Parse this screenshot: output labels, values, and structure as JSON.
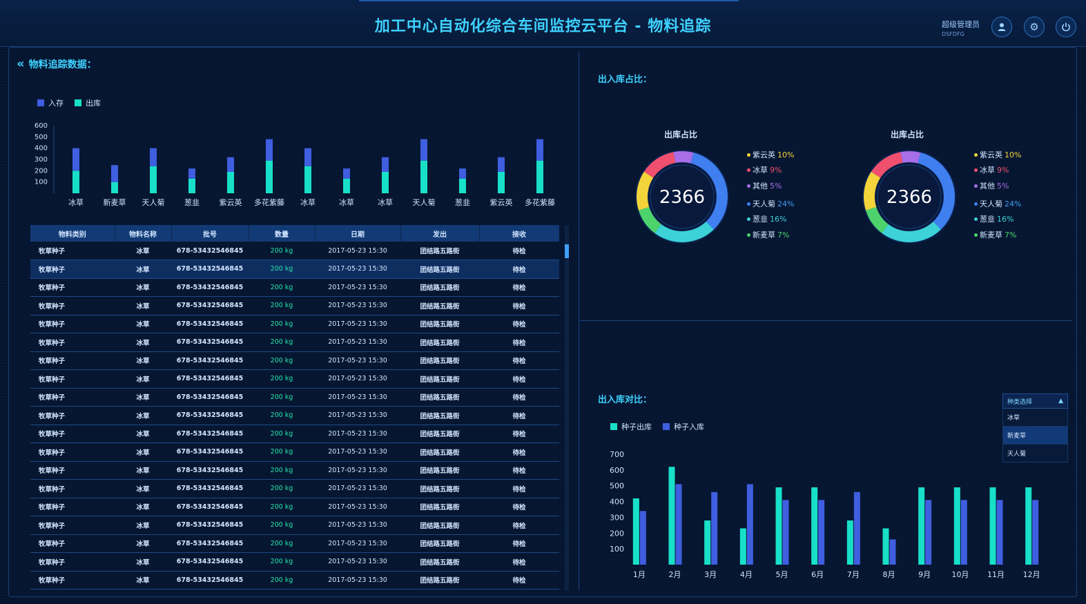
{
  "header": {
    "title": "加工中心自动化综合车间监控云平台 - 物料追踪",
    "user_name": "超级管理员",
    "user_code": "DSFDFG"
  },
  "left": {
    "section_title": "物料追踪数据："
  },
  "colors": {
    "in": "#3f5ee0",
    "out": "#18e0c8",
    "accent": "#3fd2ff"
  },
  "chart_data": [
    {
      "type": "bar",
      "stacked": true,
      "categories": [
        "冰草",
        "新麦草",
        "天人菊",
        "葱韭",
        "紫云英",
        "多花紫藤",
        "冰草",
        "冰草",
        "冰草",
        "天人菊",
        "葱韭",
        "紫云英",
        "多花紫藤"
      ],
      "series": [
        {
          "name": "入存",
          "values": [
            200,
            150,
            160,
            90,
            130,
            190,
            160,
            90,
            130,
            190,
            90,
            130,
            190
          ]
        },
        {
          "name": "出库",
          "values": [
            200,
            100,
            240,
            130,
            190,
            290,
            240,
            130,
            190,
            290,
            130,
            190,
            290
          ]
        }
      ],
      "ylim": [
        0,
        600
      ],
      "yticks": [
        100,
        200,
        300,
        400,
        500,
        600
      ]
    },
    {
      "type": "pie",
      "title": "出库占比",
      "center_value": "2366",
      "labels": [
        "紫云英",
        "冰草",
        "其他",
        "天人菊",
        "葱韭",
        "新麦草"
      ],
      "values": [
        10,
        9,
        5,
        24,
        16,
        7
      ],
      "display": [
        "10%",
        "9%",
        "5%",
        "24%",
        "16%",
        "7%"
      ]
    },
    {
      "type": "pie",
      "title": "出库占比",
      "center_value": "2366",
      "labels": [
        "紫云英",
        "冰草",
        "其他",
        "天人菊",
        "葱韭",
        "新麦草"
      ],
      "values": [
        10,
        9,
        5,
        24,
        16,
        7
      ],
      "display": [
        "10%",
        "9%",
        "5%",
        "24%",
        "16%",
        "7%"
      ]
    },
    {
      "type": "bar",
      "categories": [
        "1月",
        "2月",
        "3月",
        "4月",
        "5月",
        "6月",
        "7月",
        "8月",
        "9月",
        "10月",
        "11月",
        "12月"
      ],
      "series": [
        {
          "name": "种子出库",
          "values": [
            420,
            620,
            280,
            230,
            490,
            490,
            280,
            230,
            490,
            490,
            490,
            490
          ]
        },
        {
          "name": "种子入库",
          "values": [
            340,
            510,
            460,
            510,
            410,
            410,
            460,
            160,
            410,
            410,
            410,
            410
          ]
        }
      ],
      "ylim": [
        0,
        700
      ],
      "yticks": [
        100,
        200,
        300,
        400,
        500,
        600,
        700
      ]
    }
  ],
  "table": {
    "headers": [
      "物料类别",
      "物料名称",
      "批号",
      "数量",
      "日期",
      "发出",
      "接收"
    ],
    "rows": [
      [
        "牧草种子",
        "冰草",
        "678-53432546845",
        "200 kg",
        "2017-05-23  15:30",
        "团结路五路街",
        "待检"
      ],
      [
        "牧草种子",
        "冰草",
        "678-53432546845",
        "200 kg",
        "2017-05-23  15:30",
        "团结路五路街",
        "待检"
      ],
      [
        "牧草种子",
        "冰草",
        "678-53432546845",
        "200 kg",
        "2017-05-23  15:30",
        "团结路五路街",
        "待检"
      ],
      [
        "牧草种子",
        "冰草",
        "678-53432546845",
        "200 kg",
        "2017-05-23  15:30",
        "团结路五路街",
        "待检"
      ],
      [
        "牧草种子",
        "冰草",
        "678-53432546845",
        "200 kg",
        "2017-05-23  15:30",
        "团结路五路街",
        "待检"
      ],
      [
        "牧草种子",
        "冰草",
        "678-53432546845",
        "200 kg",
        "2017-05-23  15:30",
        "团结路五路街",
        "待检"
      ],
      [
        "牧草种子",
        "冰草",
        "678-53432546845",
        "200 kg",
        "2017-05-23  15:30",
        "团结路五路街",
        "待检"
      ],
      [
        "牧草种子",
        "冰草",
        "678-53432546845",
        "200 kg",
        "2017-05-23  15:30",
        "团结路五路街",
        "待检"
      ],
      [
        "牧草种子",
        "冰草",
        "678-53432546845",
        "200 kg",
        "2017-05-23  15:30",
        "团结路五路街",
        "待检"
      ],
      [
        "牧草种子",
        "冰草",
        "678-53432546845",
        "200 kg",
        "2017-05-23  15:30",
        "团结路五路街",
        "待检"
      ],
      [
        "牧草种子",
        "冰草",
        "678-53432546845",
        "200 kg",
        "2017-05-23  15:30",
        "团结路五路街",
        "待检"
      ],
      [
        "牧草种子",
        "冰草",
        "678-53432546845",
        "200 kg",
        "2017-05-23  15:30",
        "团结路五路街",
        "待检"
      ],
      [
        "牧草种子",
        "冰草",
        "678-53432546845",
        "200 kg",
        "2017-05-23  15:30",
        "团结路五路街",
        "待检"
      ],
      [
        "牧草种子",
        "冰草",
        "678-53432546845",
        "200 kg",
        "2017-05-23  15:30",
        "团结路五路街",
        "待检"
      ],
      [
        "牧草种子",
        "冰草",
        "678-53432546845",
        "200 kg",
        "2017-05-23  15:30",
        "团结路五路街",
        "待检"
      ],
      [
        "牧草种子",
        "冰草",
        "678-53432546845",
        "200 kg",
        "2017-05-23  15:30",
        "团结路五路街",
        "待检"
      ],
      [
        "牧草种子",
        "冰草",
        "678-53432546845",
        "200 kg",
        "2017-05-23  15:30",
        "团结路五路街",
        "待检"
      ],
      [
        "牧草种子",
        "冰草",
        "678-53432546845",
        "200 kg",
        "2017-05-23  15:30",
        "团结路五路街",
        "待检"
      ],
      [
        "牧草种子",
        "冰草",
        "678-53432546845",
        "200 kg",
        "2017-05-23  15:30",
        "团结路五路街",
        "待检"
      ]
    ]
  },
  "right_top": {
    "section_title": "出入库占比："
  },
  "right_bottom": {
    "section_title": "出入库对比：",
    "dropdown": {
      "label": "种类选择",
      "options": [
        "冰草",
        "新麦草",
        "天人菊"
      ],
      "selected_index": 1
    }
  }
}
